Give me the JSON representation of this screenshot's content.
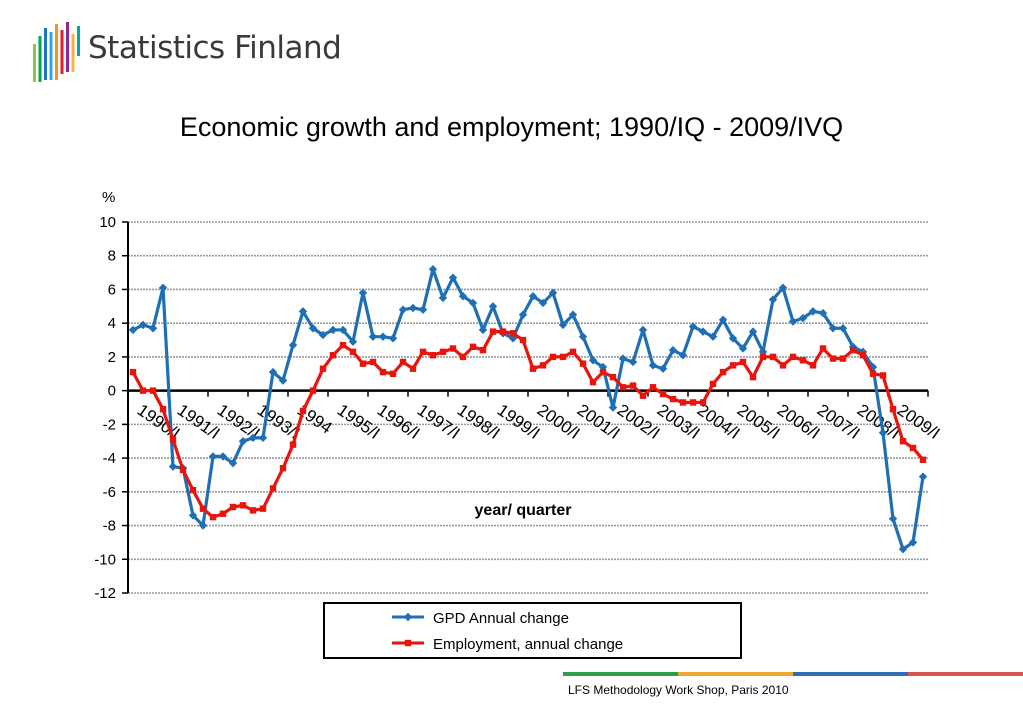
{
  "header": {
    "logo_text": "Statistics Finland",
    "logo_colors": [
      "#8dc63f",
      "#00a651",
      "#1b75bc",
      "#29abe2",
      "#f7941d",
      "#ed1c24",
      "#92278f",
      "#fbb040",
      "#00a99d"
    ]
  },
  "footer": {
    "text": "LFS Methodology Work Shop, Paris 2010",
    "bar_colors": [
      "#2e9e48",
      "#f0a830",
      "#2f6db2",
      "#d9534f"
    ]
  },
  "chart_data": {
    "type": "line",
    "title": "Economic growth and employment; 1990/IQ - 2009/IVQ",
    "xlabel": "year/ quarter",
    "ylabel": "%",
    "ylim": [
      -12,
      10
    ],
    "yticks": [
      10,
      8,
      6,
      4,
      2,
      0,
      -2,
      -4,
      -6,
      -8,
      -10,
      -12
    ],
    "grid": true,
    "legend_position": "bottom",
    "x_tick_labels": [
      "1990/I",
      "1991/I",
      "1992/I",
      "1993/I",
      "1994",
      "1995/I",
      "1996/I",
      "1997/I",
      "1998/I",
      "1999/I",
      "2000/I",
      "2001/I",
      "2002/I",
      "2003/I",
      "2004/I",
      "2005/I",
      "2006/I",
      "2007/I",
      "2008/I",
      "2009/I"
    ],
    "series": [
      {
        "name": "GPD Annual change",
        "color": "#1f6fb5",
        "marker": "diamond",
        "values": [
          3.6,
          3.9,
          3.7,
          6.1,
          -4.5,
          -4.6,
          -7.4,
          -8.0,
          -3.9,
          -3.9,
          -4.3,
          -3.0,
          -2.8,
          -2.8,
          1.1,
          0.6,
          2.7,
          4.7,
          3.7,
          3.3,
          3.6,
          3.6,
          2.9,
          5.8,
          3.2,
          3.2,
          3.1,
          4.8,
          4.9,
          4.8,
          7.2,
          5.5,
          6.7,
          5.6,
          5.2,
          3.6,
          5.0,
          3.4,
          3.1,
          4.5,
          5.6,
          5.2,
          5.8,
          3.9,
          4.5,
          3.2,
          1.8,
          1.4,
          -1.0,
          1.9,
          1.7,
          3.6,
          1.5,
          1.3,
          2.4,
          2.1,
          3.8,
          3.5,
          3.2,
          4.2,
          3.1,
          2.5,
          3.5,
          2.3,
          5.4,
          6.1,
          4.1,
          4.3,
          4.7,
          4.6,
          3.7,
          3.7,
          2.6,
          2.3,
          1.4,
          -2.5,
          -7.6,
          -9.4,
          -9.0,
          -5.1
        ]
      },
      {
        "name": "Employment, annual change",
        "color": "#e8140e",
        "marker": "square",
        "values": [
          1.1,
          0.0,
          0.0,
          -1.1,
          -2.9,
          -4.7,
          -5.9,
          -7.0,
          -7.5,
          -7.3,
          -6.9,
          -6.8,
          -7.1,
          -7.0,
          -5.8,
          -4.6,
          -3.2,
          -1.2,
          0.0,
          1.3,
          2.1,
          2.7,
          2.3,
          1.6,
          1.7,
          1.1,
          1.0,
          1.7,
          1.3,
          2.3,
          2.1,
          2.3,
          2.5,
          2.0,
          2.6,
          2.4,
          3.5,
          3.5,
          3.4,
          3.0,
          1.3,
          1.5,
          2.0,
          2.0,
          2.3,
          1.6,
          0.5,
          1.1,
          0.8,
          0.2,
          0.3,
          -0.3,
          0.2,
          -0.2,
          -0.5,
          -0.7,
          -0.7,
          -0.7,
          0.4,
          1.1,
          1.5,
          1.7,
          0.8,
          2.0,
          2.0,
          1.5,
          2.0,
          1.8,
          1.5,
          2.5,
          1.9,
          1.9,
          2.4,
          2.1,
          1.0,
          0.9,
          -1.1,
          -3.0,
          -3.4,
          -4.1
        ]
      }
    ]
  }
}
